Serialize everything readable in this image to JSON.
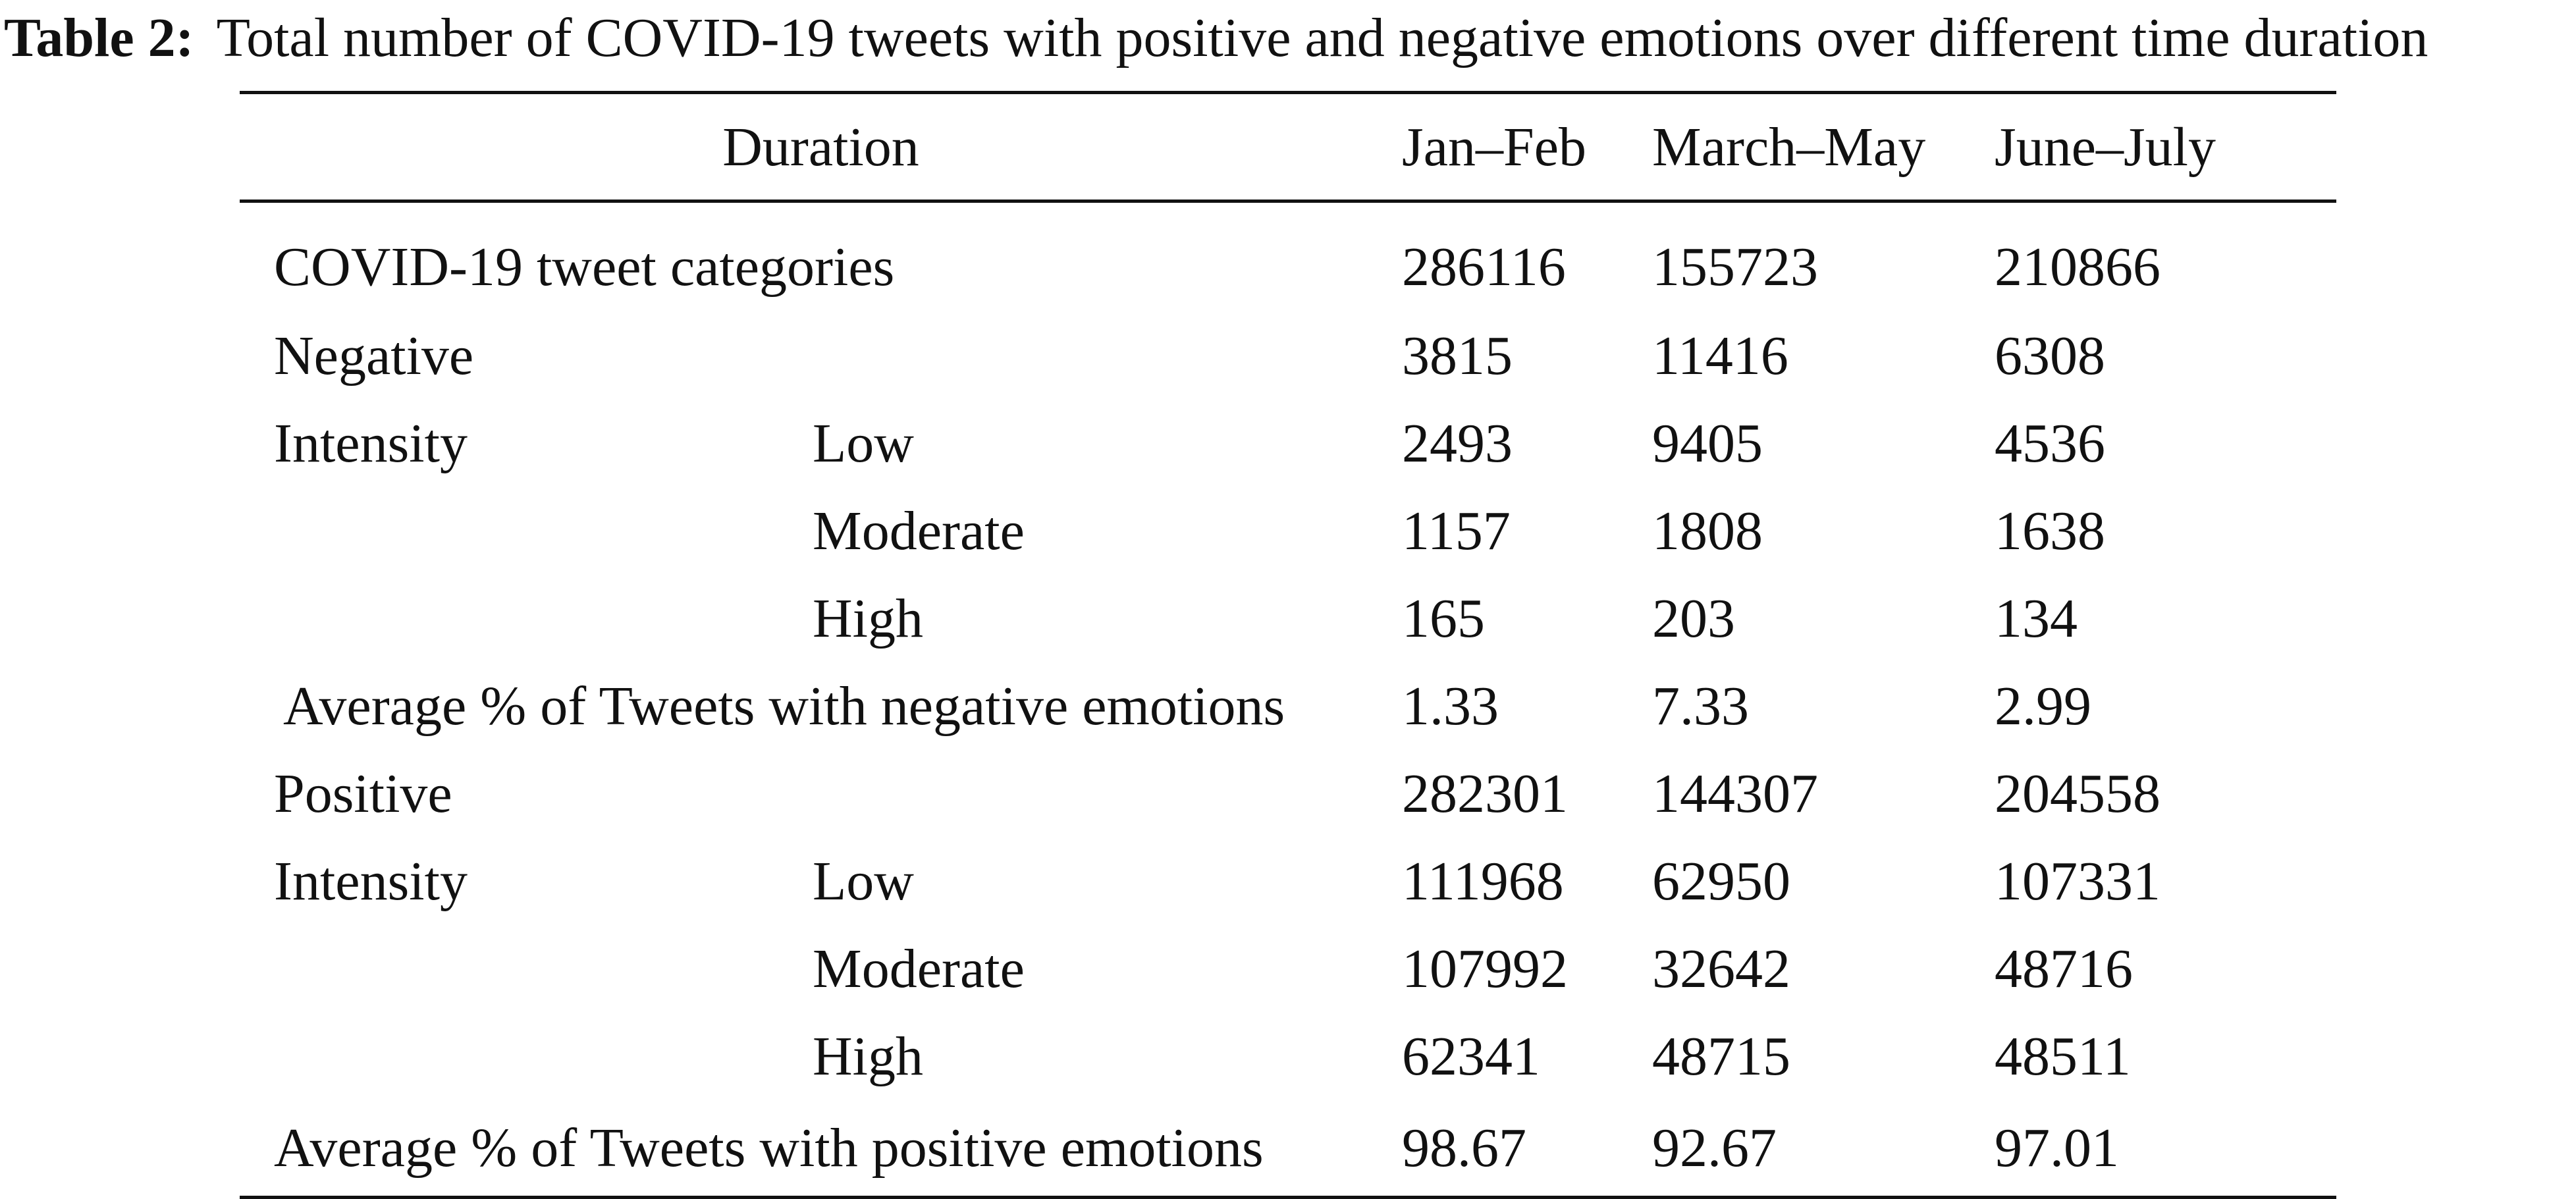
{
  "caption": {
    "label": "Table 2:",
    "text": "Total number of COVID-19 tweets with positive and negative emotions over different time duration"
  },
  "table": {
    "header": {
      "duration": "Duration",
      "columns": [
        "Jan–Feb",
        "March–May",
        "June–July"
      ]
    },
    "rows": [
      {
        "col1": "COVID-19 tweet categories",
        "col2": "",
        "values": [
          "286116",
          "155723",
          "210866"
        ]
      },
      {
        "col1": "Negative",
        "col2": "",
        "values": [
          "3815",
          "11416",
          "6308"
        ]
      },
      {
        "col1": "Intensity",
        "col2": "Low",
        "values": [
          "2493",
          "9405",
          "4536"
        ]
      },
      {
        "col1": "",
        "col2": "Moderate",
        "values": [
          "1157",
          "1808",
          "1638"
        ]
      },
      {
        "col1": "",
        "col2": "High",
        "values": [
          "165",
          "203",
          "134"
        ]
      },
      {
        "col1": "Average % of Tweets with negative emotions",
        "col2": "",
        "values": [
          "1.33",
          "7.33",
          "2.99"
        ]
      },
      {
        "col1": "Positive",
        "col2": "",
        "values": [
          "282301",
          "144307",
          "204558"
        ]
      },
      {
        "col1": "Intensity",
        "col2": "Low",
        "values": [
          "111968",
          "62950",
          "107331"
        ]
      },
      {
        "col1": "",
        "col2": "Moderate",
        "values": [
          "107992",
          "32642",
          "48716"
        ]
      },
      {
        "col1": "",
        "col2": "High",
        "values": [
          "62341",
          "48715",
          "48511"
        ]
      },
      {
        "col1": "Average % of Tweets with positive emotions",
        "col2": "",
        "values": [
          "98.67",
          "92.67",
          "97.01"
        ]
      }
    ]
  }
}
